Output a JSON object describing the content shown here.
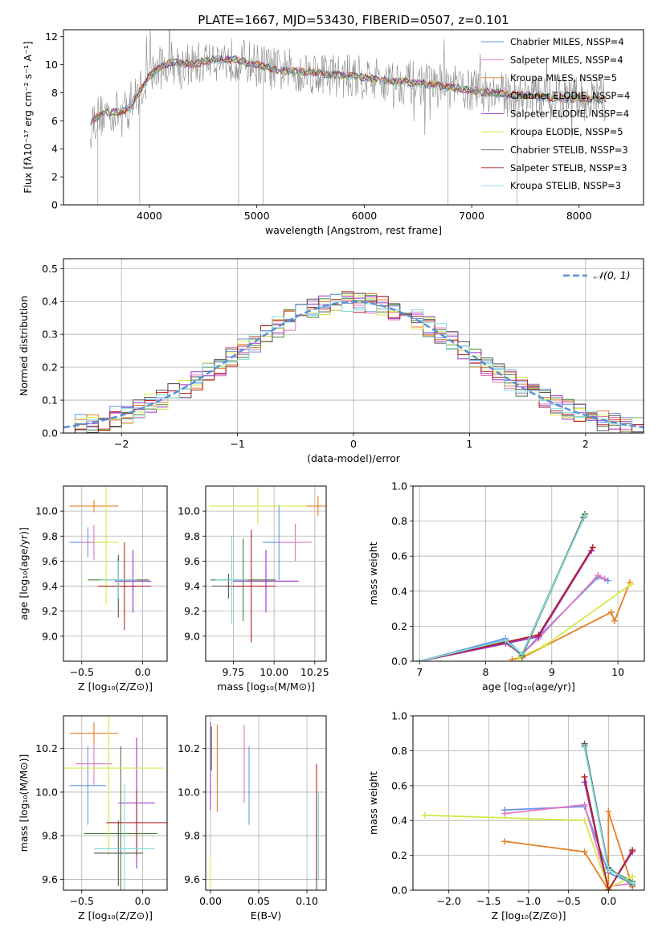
{
  "title": "PLATE=1667, MJD=53430, FIBERID=0507, z=0.101",
  "colors": [
    "#6495ed",
    "#e377c2",
    "#e67e22",
    "#4a7d3c",
    "#9b30c8",
    "#d4ea4a",
    "#555555",
    "#b22222",
    "#7fdbdb"
  ],
  "chart_data": [
    {
      "id": "spectrum",
      "type": "line",
      "xlabel": "wavelength [Angstrom, rest frame]",
      "ylabel": "Flux [fλ10⁻¹⁷ erg cm⁻² s⁻¹ A⁻¹]",
      "xlim": [
        3200,
        8600
      ],
      "ylim": [
        0,
        12.5
      ],
      "xticks": [
        "4000",
        "5000",
        "6000",
        "7000",
        "8000"
      ],
      "yticks": [
        "0",
        "2",
        "4",
        "6",
        "8",
        "10",
        "12"
      ],
      "legend_position": "top-right",
      "legend": [
        "Chabrier MILES, NSSP=4",
        "Salpeter MILES, NSSP=4",
        "Kroupa MILES, NSSP=5",
        "Chabrier ELODIE, NSSP=4",
        "Salpeter ELODIE, NSSP=4",
        "Kroupa ELODIE, NSSP=5",
        "Chabrier STELIB, NSSP=3",
        "Salpeter STELIB, NSSP=3",
        "Kroupa STELIB, NSSP=3"
      ],
      "model_shape": [
        [
          3450,
          6.0
        ],
        [
          3600,
          6.6
        ],
        [
          3700,
          6.6
        ],
        [
          3800,
          6.8
        ],
        [
          3900,
          8.0
        ],
        [
          4000,
          9.2
        ],
        [
          4100,
          9.8
        ],
        [
          4200,
          10.2
        ],
        [
          4400,
          10.0
        ],
        [
          4600,
          10.4
        ],
        [
          4800,
          10.4
        ],
        [
          5000,
          10.0
        ],
        [
          5200,
          9.6
        ],
        [
          5500,
          9.5
        ],
        [
          5800,
          9.2
        ],
        [
          6000,
          9.1
        ],
        [
          6300,
          8.8
        ],
        [
          6600,
          8.6
        ],
        [
          6800,
          8.4
        ],
        [
          7000,
          8.2
        ],
        [
          7300,
          7.9
        ],
        [
          7500,
          7.8
        ],
        [
          7800,
          7.6
        ],
        [
          8000,
          7.6
        ],
        [
          8250,
          7.5
        ]
      ]
    },
    {
      "id": "residuals",
      "type": "histogram",
      "xlabel": "(data-model)/error",
      "ylabel": "Normed distribution",
      "xlim": [
        -2.5,
        2.5
      ],
      "ylim": [
        0,
        0.53
      ],
      "xticks": [
        "−2",
        "−1",
        "0",
        "1",
        "2"
      ],
      "yticks": [
        "0.0",
        "0.1",
        "0.2",
        "0.3",
        "0.4",
        "0.5"
      ],
      "legend": "𝒩(0, 1)",
      "legend_position": "top-right"
    },
    {
      "id": "age-vs-Z",
      "type": "errorbar",
      "xlabel": "Z [log₁₀(Z/Z⊙)]",
      "ylabel": "age  [log₁₀(age/yr)]",
      "xlim": [
        -0.65,
        0.2
      ],
      "ylim": [
        8.8,
        10.2
      ],
      "xticks": [
        "−0.5",
        "0.0"
      ],
      "yticks": [
        "9.0",
        "9.2",
        "9.4",
        "9.6",
        "9.8",
        "10.0"
      ],
      "points": [
        [
          -0.45,
          9.75,
          0.15,
          0.12
        ],
        [
          -0.4,
          9.75,
          0.1,
          0.14
        ],
        [
          -0.4,
          10.04,
          0.2,
          0.05
        ],
        [
          -0.2,
          9.45,
          0.25,
          0.17
        ],
        [
          -0.08,
          9.44,
          0.15,
          0.25
        ],
        [
          -0.3,
          9.75,
          0.1,
          0.5
        ],
        [
          -0.2,
          9.4,
          0.15,
          0.25
        ],
        [
          -0.15,
          9.4,
          0.22,
          0.35
        ],
        [
          -0.2,
          9.45,
          0.15,
          0.15
        ]
      ]
    },
    {
      "id": "age-vs-mass",
      "type": "errorbar",
      "xlabel": "mass [log₁₀(M/M⊙)]",
      "ylabel": "",
      "xlim": [
        9.58,
        10.32
      ],
      "ylim": [
        8.8,
        10.2
      ],
      "xticks": [
        "9.75",
        "10.00",
        "10.25"
      ],
      "yticks": [
        "9.0",
        "9.2",
        "9.4",
        "9.6",
        "9.8",
        "10.0"
      ],
      "points": [
        [
          10.03,
          9.75,
          0.1,
          0.3
        ],
        [
          10.13,
          9.75,
          0.1,
          0.15
        ],
        [
          10.27,
          10.04,
          0.1,
          0.08
        ],
        [
          9.81,
          9.45,
          0.2,
          0.33
        ],
        [
          9.95,
          9.44,
          0.2,
          0.25
        ],
        [
          9.9,
          10.04,
          0.3,
          0.15
        ],
        [
          9.72,
          9.4,
          0.1,
          0.1
        ],
        [
          9.86,
          9.4,
          0.15,
          0.45
        ],
        [
          9.74,
          9.45,
          0.1,
          0.35
        ]
      ]
    },
    {
      "id": "mass-weight-vs-age",
      "type": "line",
      "xlabel": "age  [log₁₀(age/yr)]",
      "ylabel": "mass weight",
      "xlim": [
        6.9,
        10.4
      ],
      "ylim": [
        0,
        1
      ],
      "xticks": [
        "7",
        "8",
        "9",
        "10"
      ],
      "yticks": [
        "0.0",
        "0.2",
        "0.4",
        "0.6",
        "0.8",
        "1.0"
      ],
      "series": [
        {
          "points": [
            [
              7.0,
              0.0
            ],
            [
              8.3,
              0.13
            ],
            [
              8.55,
              0.04
            ],
            [
              8.8,
              0.14
            ],
            [
              9.7,
              0.48
            ],
            [
              9.85,
              0.46
            ]
          ]
        },
        {
          "points": [
            [
              7.0,
              0.0
            ],
            [
              8.3,
              0.1
            ],
            [
              8.55,
              0.04
            ],
            [
              8.8,
              0.13
            ],
            [
              9.7,
              0.49
            ],
            [
              9.8,
              0.47
            ]
          ]
        },
        {
          "points": [
            [
              8.4,
              0.01
            ],
            [
              8.55,
              0.02
            ],
            [
              9.9,
              0.28
            ],
            [
              9.95,
              0.23
            ],
            [
              10.18,
              0.45
            ]
          ]
        },
        {
          "points": [
            [
              7.0,
              0.0
            ],
            [
              8.3,
              0.11
            ],
            [
              8.55,
              0.04
            ],
            [
              9.5,
              0.84
            ]
          ]
        },
        {
          "points": [
            [
              7.0,
              0.0
            ],
            [
              8.8,
              0.14
            ],
            [
              9.6,
              0.63
            ]
          ]
        },
        {
          "points": [
            [
              8.5,
              0.02
            ],
            [
              8.9,
              0.09
            ],
            [
              10.2,
              0.44
            ]
          ]
        },
        {
          "points": [
            [
              7.0,
              0.0
            ],
            [
              8.3,
              0.12
            ],
            [
              8.55,
              0.03
            ],
            [
              9.48,
              0.82
            ]
          ]
        },
        {
          "points": [
            [
              7.0,
              0.0
            ],
            [
              8.8,
              0.15
            ],
            [
              9.62,
              0.65
            ]
          ]
        },
        {
          "points": [
            [
              7.0,
              0.0
            ],
            [
              8.3,
              0.12
            ],
            [
              8.55,
              0.04
            ],
            [
              9.5,
              0.83
            ]
          ]
        }
      ]
    },
    {
      "id": "mass-vs-Z",
      "type": "errorbar",
      "xlabel": "Z [log₁₀(Z/Z⊙)]",
      "ylabel": "mass [log₁₀(M/M⊙)]",
      "xlim": [
        -0.65,
        0.2
      ],
      "ylim": [
        9.55,
        10.35
      ],
      "xticks": [
        "−0.5",
        "0.0"
      ],
      "yticks": [
        "9.6",
        "9.8",
        "10.0",
        "10.2"
      ],
      "points": [
        [
          -0.45,
          10.03,
          0.15,
          0.18
        ],
        [
          -0.4,
          10.13,
          0.15,
          0.1
        ],
        [
          -0.4,
          10.27,
          0.2,
          0.05
        ],
        [
          -0.18,
          9.81,
          0.3,
          0.4
        ],
        [
          -0.05,
          9.95,
          0.15,
          0.3
        ],
        [
          -0.28,
          10.11,
          0.45,
          0.4
        ],
        [
          -0.2,
          9.72,
          0.2,
          0.15
        ],
        [
          -0.05,
          9.86,
          0.25,
          0.15
        ],
        [
          -0.15,
          9.74,
          0.25,
          0.3
        ]
      ]
    },
    {
      "id": "mass-vs-EBV",
      "type": "errorbar",
      "xlabel": "E(B-V)",
      "ylabel": "",
      "xlim": [
        -0.005,
        0.12
      ],
      "ylim": [
        9.55,
        10.35
      ],
      "xticks": [
        "0.00",
        "0.05",
        "0.10"
      ],
      "yticks": [
        "9.6",
        "9.8",
        "10.0",
        "10.2"
      ],
      "points": [
        [
          0.04,
          10.03,
          0,
          0.18
        ],
        [
          0.035,
          10.13,
          0,
          0.18
        ],
        [
          0.007,
          10.11,
          0,
          0.2
        ],
        [
          0.001,
          10.2,
          0,
          0.1
        ],
        [
          0.0,
          10.12,
          0,
          0.2
        ],
        [
          0.0,
          9.6,
          0,
          0.1
        ],
        [
          0.11,
          9.75,
          0,
          0.2
        ],
        [
          0.11,
          9.86,
          0,
          0.27
        ],
        [
          0.112,
          9.8,
          0,
          0.2
        ]
      ]
    },
    {
      "id": "mass-weight-vs-Z",
      "type": "line",
      "xlabel": "Z [log₁₀(Z/Z⊙)]",
      "ylabel": "mass weight",
      "xlim": [
        -2.45,
        0.45
      ],
      "ylim": [
        0,
        1
      ],
      "xticks": [
        "−2.0",
        "−1.5",
        "−1.0",
        "−0.5",
        "0.0"
      ],
      "yticks": [
        "0.0",
        "0.2",
        "0.4",
        "0.6",
        "0.8",
        "1.0"
      ],
      "series": [
        {
          "points": [
            [
              -1.3,
              0.46
            ],
            [
              -0.3,
              0.48
            ],
            [
              0.0,
              0.1
            ],
            [
              0.3,
              0.04
            ]
          ]
        },
        {
          "points": [
            [
              -1.3,
              0.44
            ],
            [
              -0.3,
              0.49
            ],
            [
              0.0,
              0.02
            ],
            [
              0.3,
              0.04
            ]
          ]
        },
        {
          "points": [
            [
              -1.3,
              0.28
            ],
            [
              -0.3,
              0.22
            ],
            [
              0.0,
              0.0
            ],
            [
              0.0,
              0.45
            ],
            [
              0.3,
              0.02
            ]
          ]
        },
        {
          "points": [
            [
              -0.3,
              0.83
            ],
            [
              0.0,
              0.12
            ],
            [
              0.3,
              0.05
            ]
          ]
        },
        {
          "points": [
            [
              -0.3,
              0.62
            ],
            [
              0.0,
              0.0
            ],
            [
              0.3,
              0.22
            ]
          ]
        },
        {
          "points": [
            [
              -2.3,
              0.43
            ],
            [
              -0.3,
              0.4
            ],
            [
              0.0,
              0.01
            ],
            [
              0.3,
              0.08
            ]
          ]
        },
        {
          "points": [
            [
              -0.3,
              0.84
            ],
            [
              0.0,
              0.13
            ],
            [
              0.3,
              0.03
            ]
          ]
        },
        {
          "points": [
            [
              -0.3,
              0.65
            ],
            [
              0.0,
              0.0
            ],
            [
              0.3,
              0.23
            ]
          ]
        },
        {
          "points": [
            [
              -0.3,
              0.82
            ],
            [
              0.0,
              0.12
            ],
            [
              0.3,
              0.04
            ]
          ]
        }
      ]
    }
  ]
}
